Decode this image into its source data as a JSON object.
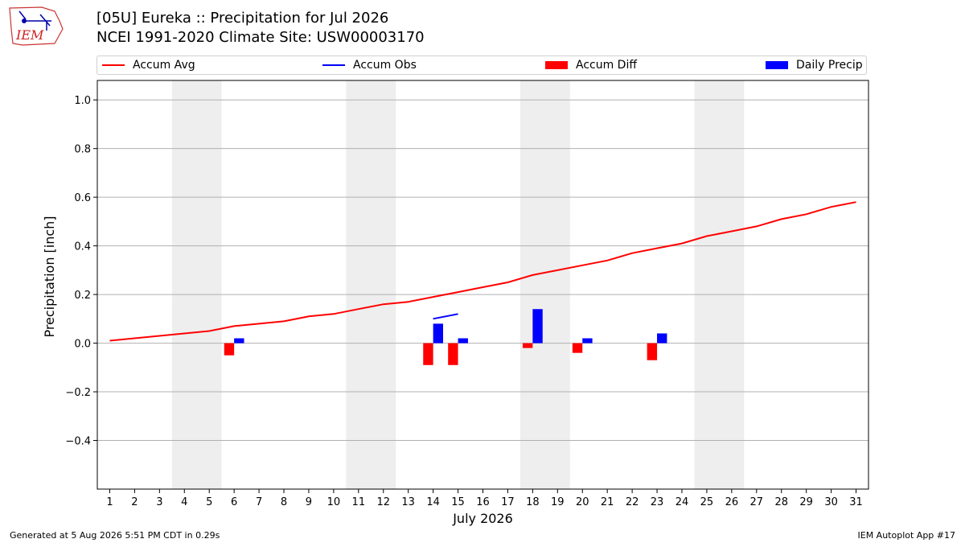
{
  "header": {
    "title_line1": "[05U] Eureka :: Precipitation for Jul 2026",
    "title_line2": "NCEI 1991-2020 Climate Site: USW00003170",
    "logo_text": "IEM"
  },
  "legend": {
    "items": [
      {
        "label": "Accum Avg",
        "kind": "line",
        "color": "#ff0000"
      },
      {
        "label": "Accum Obs",
        "kind": "line",
        "color": "#0000ff"
      },
      {
        "label": "Accum Diff",
        "kind": "box",
        "color": "#ff0000"
      },
      {
        "label": "Daily Precip",
        "kind": "box",
        "color": "#0000ff"
      }
    ],
    "placement": "top"
  },
  "footer": {
    "left": "Generated at 5 Aug 2026 5:51 PM CDT in 0.29s",
    "right": "IEM Autoplot App #17"
  },
  "chart_data": {
    "type": "bar",
    "xlabel": "July 2026",
    "ylabel": "Precipitation [inch]",
    "xlim": [
      0.5,
      31.5
    ],
    "ylim": [
      -0.6,
      1.08
    ],
    "yticks": [
      -0.4,
      -0.2,
      0.0,
      0.2,
      0.4,
      0.6,
      0.8,
      1.0
    ],
    "ytick_labels": [
      "−0.4",
      "−0.2",
      "0.0",
      "0.2",
      "0.4",
      "0.6",
      "0.8",
      "1.0"
    ],
    "xticks": [
      1,
      2,
      3,
      4,
      5,
      6,
      7,
      8,
      9,
      10,
      11,
      12,
      13,
      14,
      15,
      16,
      17,
      18,
      19,
      20,
      21,
      22,
      23,
      24,
      25,
      26,
      27,
      28,
      29,
      30,
      31
    ],
    "grid": "horizontal",
    "weekend_shading": [
      [
        4,
        5
      ],
      [
        11,
        12
      ],
      [
        18,
        19
      ],
      [
        25,
        26
      ]
    ],
    "shading_color": "#eeeeee",
    "series": [
      {
        "name": "Accum Avg",
        "kind": "line",
        "color": "#ff0000",
        "x": [
          1,
          2,
          3,
          4,
          5,
          6,
          7,
          8,
          9,
          10,
          11,
          12,
          13,
          14,
          15,
          16,
          17,
          18,
          19,
          20,
          21,
          22,
          23,
          24,
          25,
          26,
          27,
          28,
          29,
          30,
          31
        ],
        "values": [
          0.01,
          0.02,
          0.03,
          0.04,
          0.05,
          0.07,
          0.08,
          0.09,
          0.11,
          0.12,
          0.14,
          0.16,
          0.17,
          0.19,
          0.21,
          0.23,
          0.25,
          0.28,
          0.3,
          0.32,
          0.34,
          0.37,
          0.39,
          0.41,
          0.44,
          0.46,
          0.48,
          0.51,
          0.53,
          0.56,
          0.58
        ]
      },
      {
        "name": "Accum Obs",
        "kind": "line",
        "color": "#0000ff",
        "x": [
          14,
          15
        ],
        "values": [
          0.1,
          0.12
        ]
      },
      {
        "name": "Accum Diff",
        "kind": "bar",
        "color": "#ff0000",
        "x": [
          6,
          14,
          15,
          18,
          20,
          23
        ],
        "values": [
          -0.05,
          -0.09,
          -0.09,
          -0.02,
          -0.04,
          -0.07
        ]
      },
      {
        "name": "Daily Precip",
        "kind": "bar",
        "color": "#0000ff",
        "x": [
          6,
          14,
          15,
          18,
          20,
          23
        ],
        "values": [
          0.02,
          0.08,
          0.02,
          0.14,
          0.02,
          0.04
        ]
      }
    ]
  }
}
